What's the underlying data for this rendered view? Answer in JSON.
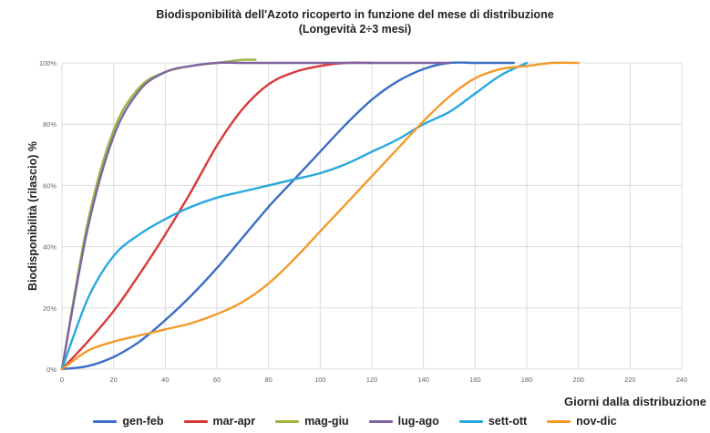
{
  "chart_data": {
    "type": "line",
    "title": [
      "Biodisponibilità dell'Azoto ricoperto in funzione del mese di distribuzione",
      "(Longevità 2÷3 mesi)"
    ],
    "xlabel": "Giorni dalla distribuzione",
    "ylabel": "Biodisponibilità (rilascio) %",
    "xlim": [
      0,
      240
    ],
    "ylim": [
      0,
      100
    ],
    "x_ticks": [
      "0",
      "20",
      "40",
      "60",
      "80",
      "100",
      "120",
      "140",
      "160",
      "180",
      "200",
      "220",
      "240"
    ],
    "y_ticks": [
      "0%",
      "20%",
      "40%",
      "60%",
      "80%",
      "100%"
    ],
    "grid": true,
    "legend_position": "bottom",
    "series": [
      {
        "name": "gen-feb",
        "color": "#3A6FC4",
        "x": [
          0,
          10,
          20,
          30,
          40,
          50,
          60,
          70,
          80,
          90,
          100,
          110,
          120,
          130,
          140,
          150,
          160,
          170,
          175
        ],
        "y": [
          0,
          1,
          4,
          9,
          16,
          24,
          33,
          43,
          53,
          62,
          71,
          80,
          88,
          94,
          98,
          100,
          100,
          100,
          100
        ]
      },
      {
        "name": "mar-apr",
        "color": "#D9383A",
        "x": [
          0,
          10,
          20,
          30,
          40,
          50,
          60,
          70,
          80,
          90,
          100,
          110,
          120
        ],
        "y": [
          0,
          9,
          19,
          31,
          44,
          58,
          73,
          85,
          93,
          97,
          99,
          100,
          100
        ]
      },
      {
        "name": "mag-giu",
        "color": "#9BB53E",
        "x": [
          0,
          10,
          20,
          30,
          40,
          50,
          60,
          70,
          75
        ],
        "y": [
          0,
          48,
          78,
          92,
          97,
          99,
          100,
          101,
          101
        ]
      },
      {
        "name": "lug-ago",
        "color": "#8064A2",
        "x": [
          0,
          10,
          20,
          30,
          40,
          50,
          60,
          70,
          80,
          90,
          100,
          110,
          120,
          130,
          140,
          150
        ],
        "y": [
          0,
          46,
          76,
          91,
          97,
          99,
          100,
          100,
          100,
          100,
          100,
          100,
          100,
          100,
          100,
          100
        ]
      },
      {
        "name": "sett-ott",
        "color": "#29A8DF",
        "x": [
          0,
          10,
          20,
          30,
          40,
          50,
          60,
          70,
          80,
          90,
          100,
          110,
          120,
          130,
          140,
          150,
          160,
          170,
          180
        ],
        "y": [
          0,
          23,
          37,
          44,
          49,
          53,
          56,
          58,
          60,
          62,
          64,
          67,
          71,
          75,
          80,
          84,
          90,
          96,
          100
        ]
      },
      {
        "name": "nov-dic",
        "color": "#F39A2B",
        "x": [
          0,
          10,
          20,
          30,
          40,
          50,
          60,
          70,
          80,
          90,
          100,
          110,
          120,
          130,
          140,
          150,
          160,
          170,
          180,
          190,
          200
        ],
        "y": [
          0,
          6,
          9,
          11,
          13,
          15,
          18,
          22,
          28,
          36,
          45,
          54,
          63,
          72,
          81,
          89,
          95,
          98,
          99,
          100,
          100
        ]
      }
    ]
  }
}
